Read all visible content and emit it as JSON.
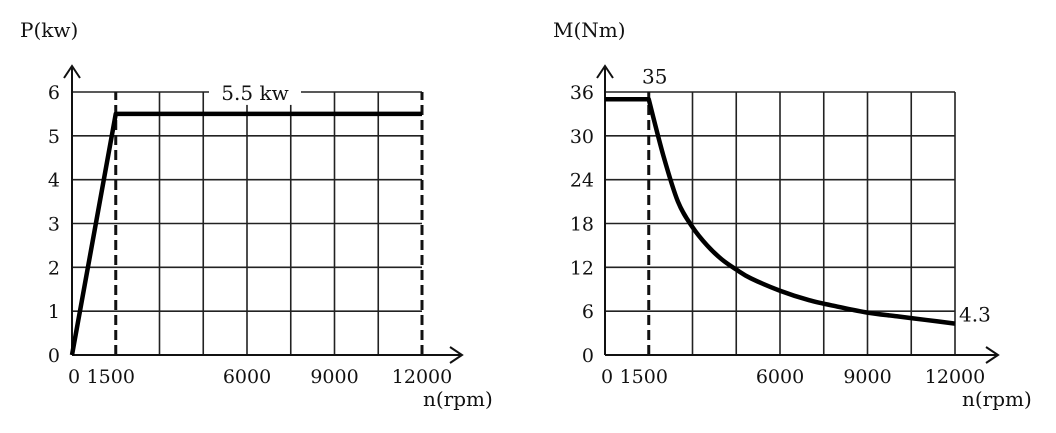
{
  "chart_data": [
    {
      "type": "line",
      "title": "",
      "ylabel": "P(kw)",
      "xlabel": "n(rpm)",
      "xlim": [
        0,
        12000
      ],
      "ylim": [
        0,
        6
      ],
      "x_ticks": [
        0,
        1500,
        6000,
        9000,
        12000
      ],
      "x_tick_labels": [
        "0",
        "1500",
        "6000",
        "9000",
        "12000"
      ],
      "y_ticks": [
        0,
        1,
        2,
        3,
        4,
        5,
        6
      ],
      "y_tick_labels": [
        "0",
        "1",
        "2",
        "3",
        "4",
        "5",
        "6"
      ],
      "grid": true,
      "series": [
        {
          "x": [
            0,
            1500,
            12000
          ],
          "y": [
            0,
            5.5,
            5.5
          ]
        }
      ],
      "dashed_verticals": [
        1500,
        12000
      ],
      "annotations": [
        {
          "text": "5.5 kw",
          "x": 6000,
          "y": 5.5
        }
      ]
    },
    {
      "type": "line",
      "title": "",
      "ylabel": "M(Nm)",
      "xlabel": "n(rpm)",
      "xlim": [
        0,
        12000
      ],
      "ylim": [
        0,
        36
      ],
      "x_ticks": [
        0,
        1500,
        6000,
        9000,
        12000
      ],
      "x_tick_labels": [
        "0",
        "1500",
        "6000",
        "9000",
        "12000"
      ],
      "y_ticks": [
        0,
        6,
        12,
        18,
        24,
        30,
        36
      ],
      "y_tick_labels": [
        "0",
        "6",
        "12",
        "18",
        "24",
        "30",
        "36"
      ],
      "grid": true,
      "series": [
        {
          "x": [
            0,
            1500,
            2000,
            2500,
            3000,
            3500,
            4000,
            4500,
            5000,
            6000,
            7000,
            8000,
            9000,
            10000,
            11000,
            12000
          ],
          "y": [
            35,
            35,
            27.3,
            21,
            17.5,
            15,
            13.1,
            11.7,
            10.5,
            8.8,
            7.5,
            6.6,
            5.8,
            5.3,
            4.8,
            4.3
          ]
        }
      ],
      "dashed_verticals": [
        1500
      ],
      "annotations": [
        {
          "text": "35",
          "x": 1500,
          "y": 35
        },
        {
          "text": "4.3",
          "x": 12000,
          "y": 4.3
        }
      ]
    }
  ]
}
